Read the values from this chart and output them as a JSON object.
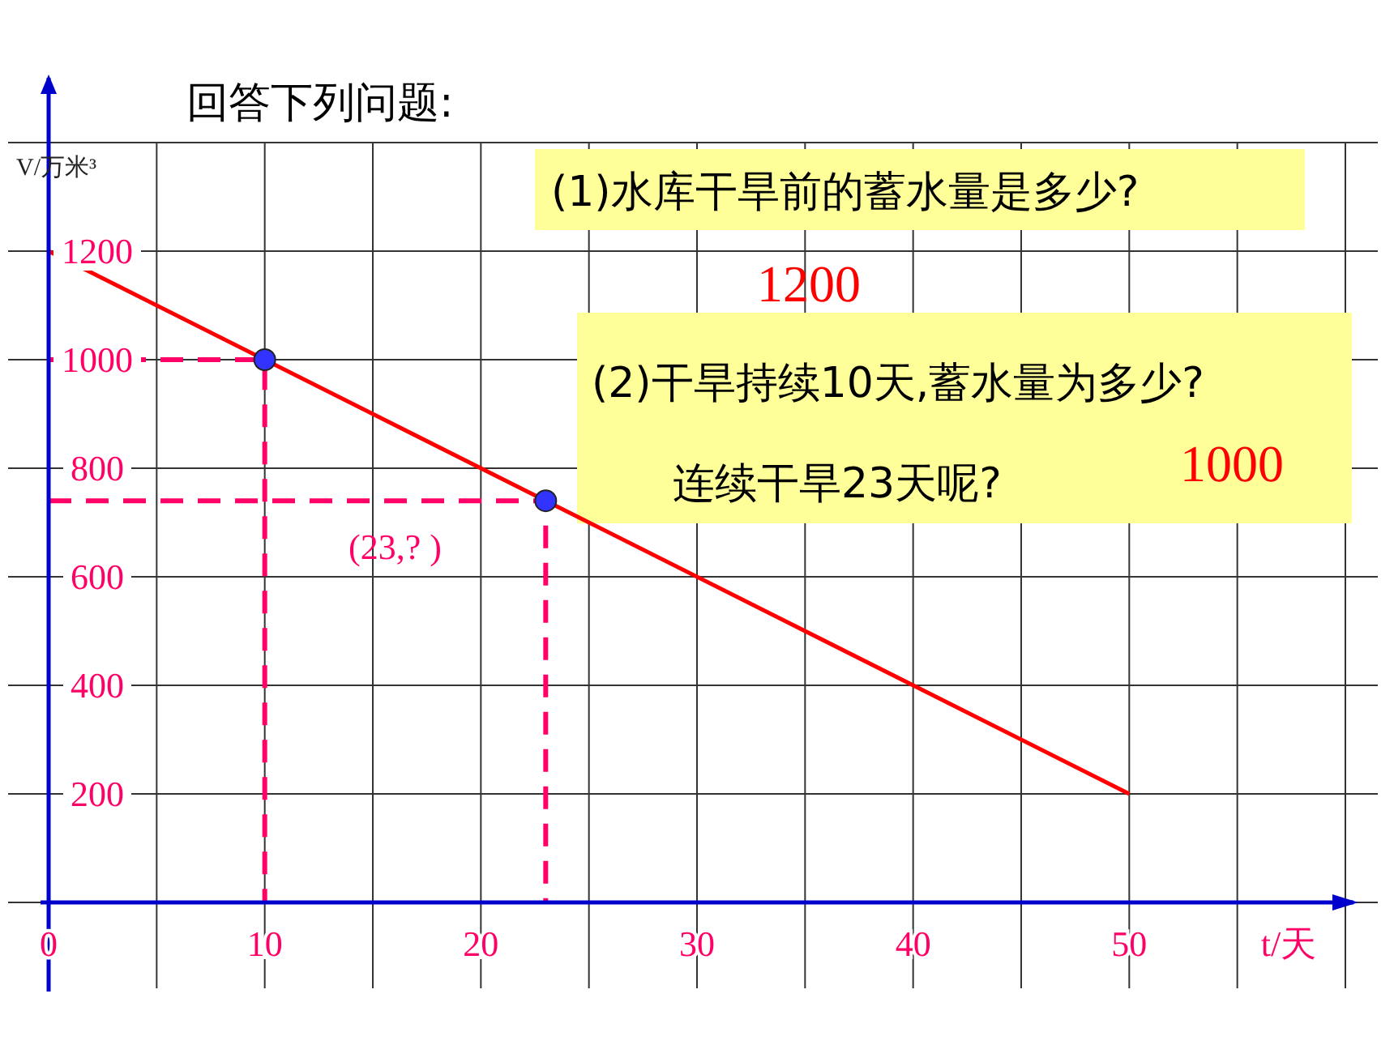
{
  "chart_data": {
    "type": "line",
    "title": "回答下列问题:",
    "xlabel": "t/天",
    "ylabel": "V/万米³",
    "x": [
      0,
      50
    ],
    "series": [
      {
        "color": "#ff0000",
        "values": [
          1200,
          200
        ]
      },
      {
        "color": "#ff0066",
        "x": [
          0,
          10,
          10
        ],
        "values": [
          1000,
          1000,
          0
        ],
        "line_style": "dashed"
      },
      {
        "color": "#ff0066",
        "x": [
          0,
          23,
          23
        ],
        "values": [
          740,
          740,
          0
        ],
        "line_style": "dashed"
      },
      {
        "type": "scatter",
        "color": "#3333ff",
        "x": [
          10,
          23
        ],
        "values": [
          1000,
          740
        ],
        "marker": "circle"
      }
    ],
    "xlim": [
      0,
      60
    ],
    "ylim": [
      0,
      1400
    ],
    "xticks": [
      0,
      {
        "value": 5,
        "label": null
      },
      10,
      {
        "value": 15,
        "label": null
      },
      20,
      {
        "value": 25,
        "label": null
      },
      30,
      {
        "value": 35,
        "label": null
      },
      40,
      {
        "value": 45,
        "label": null
      },
      50,
      {
        "value": 55,
        "label": null
      },
      {
        "value": 60,
        "label": null
      }
    ],
    "yticks": [
      {
        "value": 0,
        "label": null
      },
      200,
      400,
      600,
      800,
      1000,
      1200,
      {
        "value": 1400,
        "label": null
      }
    ],
    "grid": true,
    "annotations": [
      "(1)水库干旱前的蓄水量是多少?",
      "1200",
      "(2)干旱持续10天,蓄水量为多少?",
      "连续干旱23天呢?",
      "1000",
      "(23,? )"
    ]
  }
}
